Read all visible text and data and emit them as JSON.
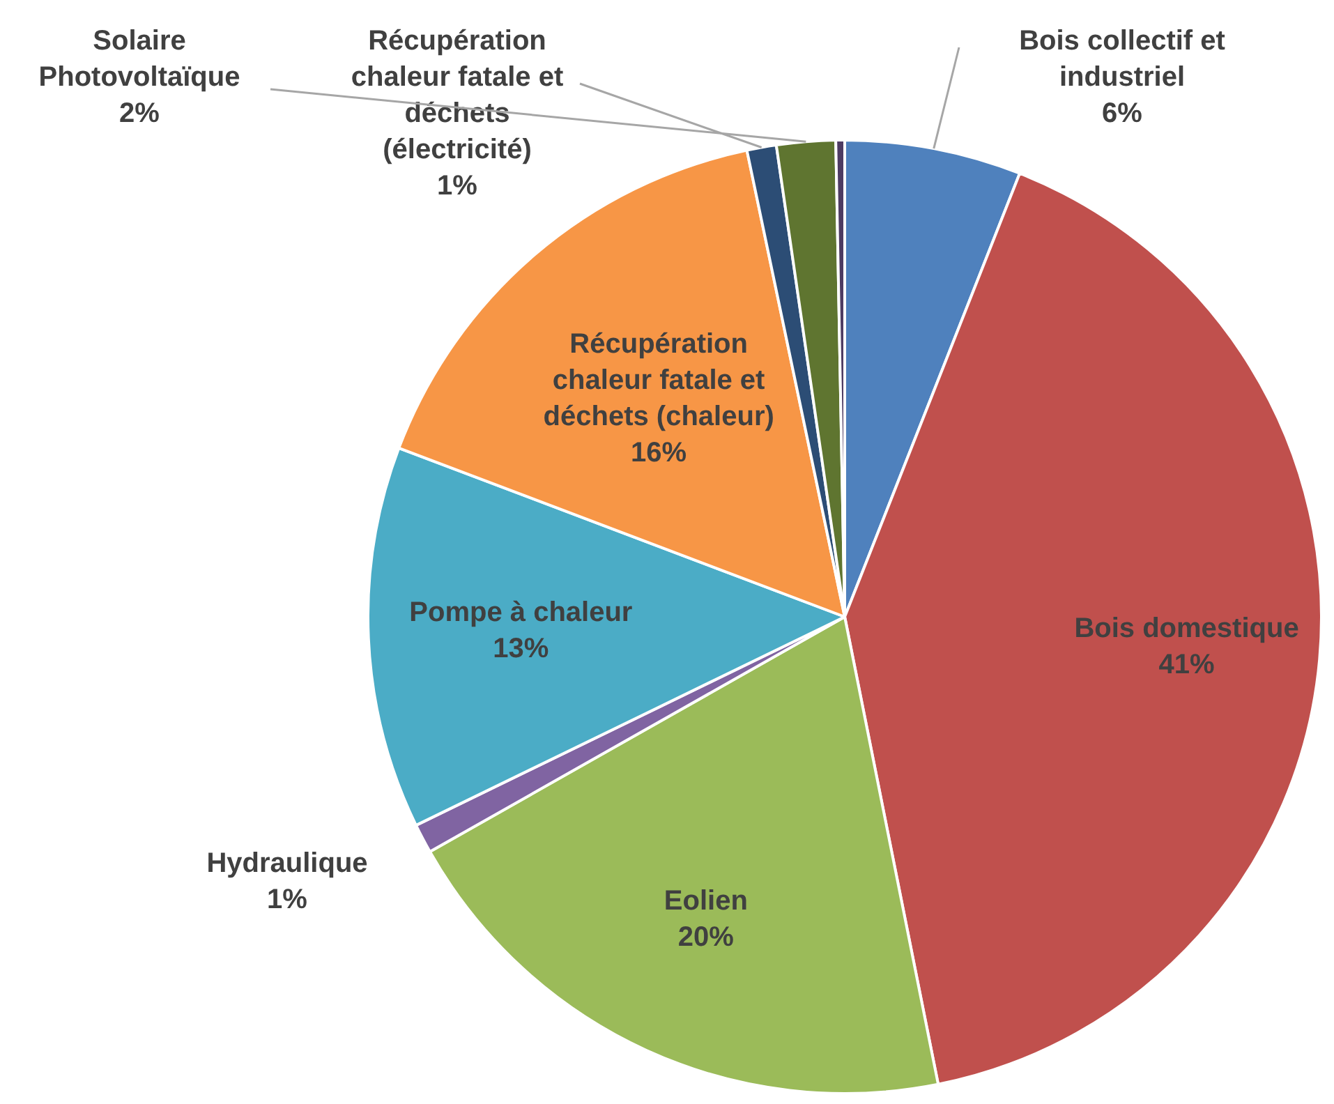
{
  "chart_data": {
    "type": "pie",
    "categories": [
      "Bois collectif et industriel",
      "Bois domestique",
      "Eolien",
      "Hydraulique",
      "Pompe à chaleur",
      "Récupération chaleur fatale et déchets (chaleur)",
      "Récupération chaleur fatale et déchets (électricité)",
      "Solaire Photovoltaïque",
      null
    ],
    "values": [
      6,
      41,
      20,
      1,
      13,
      16,
      1,
      2,
      0.3
    ],
    "colors": [
      "#4f81bd",
      "#c0504d",
      "#9bbb59",
      "#8064a2",
      "#4bacc6",
      "#f79646",
      "#2c4d75",
      "#5f7530",
      "#4d3b62"
    ],
    "value_labels": [
      "6%",
      "41%",
      "20%",
      "1%",
      "13%",
      "16%",
      "1%",
      "2%",
      null
    ],
    "legend": false
  }
}
